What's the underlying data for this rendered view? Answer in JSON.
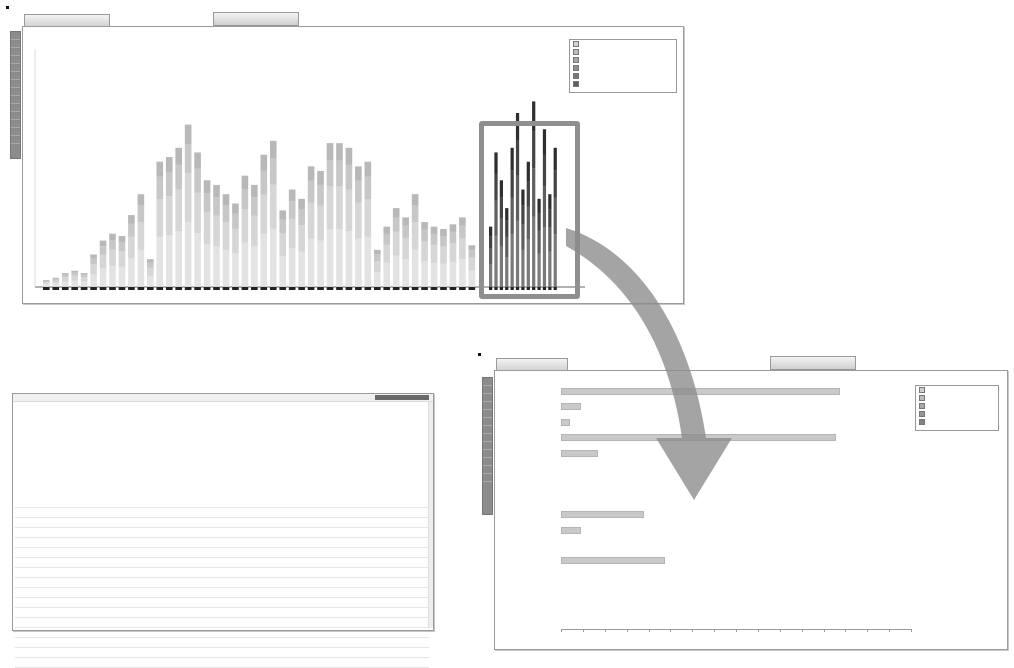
{
  "screenshot_top": {
    "tab_left": "",
    "tab_center": "",
    "title": "",
    "sidebar_slots": 14,
    "y_axis_ticks": [
      "",
      "",
      ""
    ],
    "legend": {
      "entries": [
        {
          "label": "",
          "color": "#d4d4d4"
        },
        {
          "label": "",
          "color": "#bcbcbc"
        },
        {
          "label": "",
          "color": "#a5a5a5"
        },
        {
          "label": "",
          "color": "#8e8e8e"
        },
        {
          "label": "",
          "color": "#777777"
        },
        {
          "label": "",
          "color": "#5e5e5e"
        }
      ]
    },
    "bars": [
      0.03,
      0.04,
      0.06,
      0.07,
      0.06,
      0.14,
      0.2,
      0.23,
      0.22,
      0.31,
      0.4,
      0.12,
      0.54,
      0.56,
      0.6,
      0.7,
      0.58,
      0.46,
      0.44,
      0.4,
      0.36,
      0.48,
      0.44,
      0.57,
      0.63,
      0.33,
      0.42,
      0.38,
      0.52,
      0.5,
      0.62,
      0.62,
      0.6,
      0.52,
      0.54,
      0.16,
      0.26,
      0.34,
      0.3,
      0.4,
      0.28,
      0.26,
      0.25,
      0.27,
      0.3,
      0.18
    ],
    "highlight_bars": [
      0.26,
      0.58,
      0.46,
      0.34,
      0.6,
      0.75,
      0.42,
      0.54,
      0.8,
      0.38,
      0.68,
      0.4,
      0.6
    ]
  },
  "screenshot_data": {
    "header_text": "",
    "meta_lines": [
      "",
      "",
      "",
      "",
      "",
      "",
      "",
      "",
      "",
      "",
      "",
      ""
    ],
    "columns": [
      "",
      "",
      "",
      "",
      "",
      "",
      "",
      "",
      "",
      "",
      "",
      "",
      "",
      "",
      ""
    ],
    "row_count": 16
  },
  "screenshot_bottom": {
    "tab_left": "",
    "tab_center": "",
    "title": "",
    "sidebar_slots": 13,
    "legend": {
      "entries": [
        {
          "label": "",
          "color": "#cfcfcf"
        },
        {
          "label": "",
          "color": "#bdbdbd"
        },
        {
          "label": "",
          "color": "#a9a9a9"
        },
        {
          "label": "",
          "color": "#969696"
        },
        {
          "label": "",
          "color": "#838383"
        }
      ]
    },
    "hbars": [
      {
        "label": "",
        "value": 0.79
      },
      {
        "label": "",
        "value": 0.05
      },
      {
        "label": "",
        "value": 0.02
      },
      {
        "label": "",
        "value": 0.78
      },
      {
        "label": "",
        "value": 0.1
      },
      {
        "label": "",
        "value": 0.0
      },
      {
        "label": "",
        "value": 0.0
      },
      {
        "label": "",
        "value": 0.0
      },
      {
        "label": "",
        "value": 0.23
      },
      {
        "label": "",
        "value": 0.05
      },
      {
        "label": "",
        "value": 0.0
      },
      {
        "label": "",
        "value": 0.29
      },
      {
        "label": "",
        "value": 0.0
      },
      {
        "label": "",
        "value": 0.0
      },
      {
        "label": "",
        "value": 0.0
      }
    ],
    "x_ticks": [
      "",
      "",
      "",
      ""
    ]
  },
  "arrow": {
    "color": "#8a8a8a"
  }
}
